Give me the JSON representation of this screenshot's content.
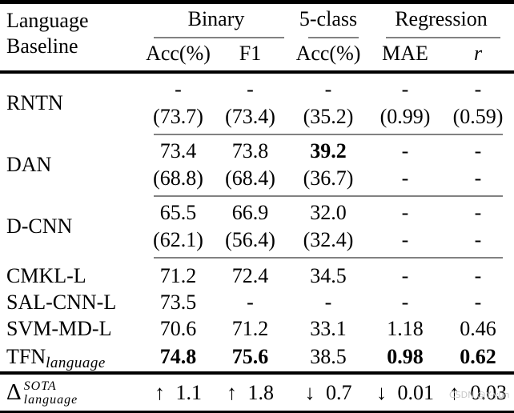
{
  "header": {
    "row_label_line1": "Language",
    "row_label_line2": "Baseline",
    "groups": [
      {
        "label": "Binary"
      },
      {
        "label": "5-class"
      },
      {
        "label": "Regression"
      }
    ],
    "subheaders": [
      "Acc(%)",
      "F1",
      "Acc(%)",
      "MAE",
      "r"
    ]
  },
  "rows": [
    {
      "label": "RNTN",
      "cells": [
        {
          "line1": "-",
          "line2": "(73.7)"
        },
        {
          "line1": "-",
          "line2": "(73.4)"
        },
        {
          "line1": "-",
          "line2": "(35.2)"
        },
        {
          "line1": "-",
          "line2": "(0.99)"
        },
        {
          "line1": "-",
          "line2": "(0.59)"
        }
      ]
    },
    {
      "label": "DAN",
      "cells": [
        {
          "line1": "73.4",
          "line2": "(68.8)"
        },
        {
          "line1": "73.8",
          "line2": "(68.4)"
        },
        {
          "line1": "39.2",
          "line2": "(36.7)"
        },
        {
          "line1": "-",
          "line2": "-"
        },
        {
          "line1": "-",
          "line2": "-"
        }
      ]
    },
    {
      "label": "D-CNN",
      "cells": [
        {
          "line1": "65.5",
          "line2": "(62.1)"
        },
        {
          "line1": "66.9",
          "line2": "(56.4)"
        },
        {
          "line1": "32.0",
          "line2": "(32.4)"
        },
        {
          "line1": "-",
          "line2": "-"
        },
        {
          "line1": "-",
          "line2": "-"
        }
      ]
    },
    {
      "label": "CMKL-L",
      "cells": [
        "71.2",
        "72.4",
        "34.5",
        "-",
        "-"
      ]
    },
    {
      "label": "SAL-CNN-L",
      "cells": [
        "73.5",
        "-",
        "-",
        "-",
        "-"
      ]
    },
    {
      "label": "SVM-MD-L",
      "cells": [
        "70.6",
        "71.2",
        "33.1",
        "1.18",
        "0.46"
      ]
    },
    {
      "label": "TFN",
      "label_sub": "language",
      "cells": [
        "74.8",
        "75.6",
        "38.5",
        "0.98",
        "0.62"
      ]
    }
  ],
  "delta_row": {
    "symbol": "Δ",
    "superscript": "SOTA",
    "subscript": "language",
    "cells": [
      "↑ 1.1",
      "↑ 1.8",
      "↓ 0.7",
      "↓ 0.01",
      "↑ 0.03"
    ]
  },
  "watermark": "CSDN @Y-yun"
}
